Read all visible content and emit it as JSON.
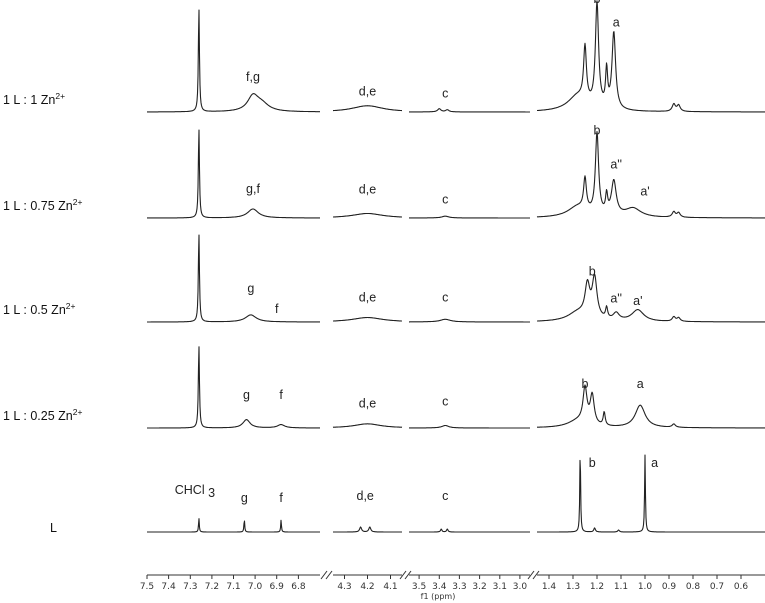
{
  "chart_data": {
    "type": "line",
    "title": "",
    "xlabel": "f1 (ppm)",
    "ylabel": "",
    "x_reversed": true,
    "axis_break_segments": [
      [
        7.5,
        6.7
      ],
      [
        4.35,
        4.05
      ],
      [
        3.55,
        2.95
      ],
      [
        1.45,
        0.5
      ]
    ],
    "x_ticks": [
      7.5,
      7.4,
      7.3,
      7.2,
      7.1,
      7.0,
      6.9,
      6.8,
      4.3,
      4.2,
      4.1,
      3.5,
      3.4,
      3.3,
      3.2,
      3.1,
      3.0,
      1.4,
      1.3,
      1.2,
      1.1,
      1.0,
      0.9,
      0.8,
      0.7,
      0.6
    ],
    "x_tick_labels": [
      "7.5",
      "7.4",
      "7.3",
      "7.2",
      "7.1",
      "7.0",
      "6.9",
      "6.8",
      "4.3",
      "4.2",
      "4.1",
      "3.5",
      "3.4",
      "3.3",
      "3.2",
      "3.1",
      "3.0",
      "1.4",
      "1.3",
      "1.2",
      "1.1",
      "1.0",
      "0.9",
      "0.8",
      "0.7",
      "0.6"
    ],
    "series": [
      {
        "name": "1 L : 1 Zn2+",
        "label_main": "1 L : 1 Zn",
        "label_sup": "2+",
        "peaks": [
          {
            "x": 7.26,
            "h": 1.0,
            "w": 0.003
          },
          {
            "x": 7.01,
            "h": 0.14,
            "w": 0.03
          },
          {
            "x": 6.97,
            "h": 0.07,
            "w": 0.04
          },
          {
            "x": 4.2,
            "h": 0.06,
            "w": 0.08
          },
          {
            "x": 3.4,
            "h": 0.03,
            "w": 0.01
          },
          {
            "x": 3.36,
            "h": 0.02,
            "w": 0.01
          },
          {
            "x": 1.25,
            "h": 0.52,
            "w": 0.007
          },
          {
            "x": 1.2,
            "h": 1.0,
            "w": 0.008
          },
          {
            "x": 1.16,
            "h": 0.35,
            "w": 0.005
          },
          {
            "x": 1.13,
            "h": 0.74,
            "w": 0.009
          },
          {
            "x": 1.28,
            "h": 0.15,
            "w": 0.05
          },
          {
            "x": 0.88,
            "h": 0.07,
            "w": 0.008
          },
          {
            "x": 0.86,
            "h": 0.06,
            "w": 0.008
          }
        ],
        "annotations": [
          {
            "text": "f,g",
            "x": 7.01,
            "h": 0.3
          },
          {
            "text": "d,e",
            "x": 4.2,
            "h": 0.16
          },
          {
            "text": "c",
            "x": 3.37,
            "h": 0.14
          },
          {
            "text": "b",
            "x": 1.2,
            "h": 1.05
          },
          {
            "text": "a",
            "x": 1.12,
            "h": 0.82
          }
        ]
      },
      {
        "name": "1 L : 0.75 Zn2+",
        "label_main": "1 L : 0.75 Zn",
        "label_sup": "2+",
        "peaks": [
          {
            "x": 7.26,
            "h": 1.0,
            "w": 0.003
          },
          {
            "x": 7.01,
            "h": 0.1,
            "w": 0.03
          },
          {
            "x": 4.2,
            "h": 0.05,
            "w": 0.08
          },
          {
            "x": 3.37,
            "h": 0.02,
            "w": 0.02
          },
          {
            "x": 1.25,
            "h": 0.35,
            "w": 0.007
          },
          {
            "x": 1.2,
            "h": 0.9,
            "w": 0.008
          },
          {
            "x": 1.16,
            "h": 0.2,
            "w": 0.005
          },
          {
            "x": 1.13,
            "h": 0.38,
            "w": 0.012
          },
          {
            "x": 1.05,
            "h": 0.1,
            "w": 0.04
          },
          {
            "x": 1.28,
            "h": 0.12,
            "w": 0.05
          },
          {
            "x": 0.88,
            "h": 0.06,
            "w": 0.008
          },
          {
            "x": 0.86,
            "h": 0.05,
            "w": 0.008
          }
        ],
        "annotations": [
          {
            "text": "g,f",
            "x": 7.01,
            "h": 0.28
          },
          {
            "text": "d,e",
            "x": 4.2,
            "h": 0.27
          },
          {
            "text": "c",
            "x": 3.37,
            "h": 0.16
          },
          {
            "text": "b",
            "x": 1.2,
            "h": 0.93
          },
          {
            "text": "a''",
            "x": 1.12,
            "h": 0.55
          },
          {
            "text": "a'",
            "x": 1.0,
            "h": 0.25
          }
        ]
      },
      {
        "name": "1 L : 0.5 Zn2+",
        "label_main": "1 L : 0.5 Zn",
        "label_sup": "2+",
        "peaks": [
          {
            "x": 7.26,
            "h": 1.0,
            "w": 0.003
          },
          {
            "x": 7.02,
            "h": 0.08,
            "w": 0.03
          },
          {
            "x": 4.2,
            "h": 0.05,
            "w": 0.08
          },
          {
            "x": 3.37,
            "h": 0.03,
            "w": 0.03
          },
          {
            "x": 1.24,
            "h": 0.35,
            "w": 0.012
          },
          {
            "x": 1.21,
            "h": 0.45,
            "w": 0.012
          },
          {
            "x": 1.16,
            "h": 0.12,
            "w": 0.005
          },
          {
            "x": 1.12,
            "h": 0.08,
            "w": 0.015
          },
          {
            "x": 1.03,
            "h": 0.13,
            "w": 0.03
          },
          {
            "x": 1.28,
            "h": 0.1,
            "w": 0.05
          },
          {
            "x": 0.88,
            "h": 0.05,
            "w": 0.008
          },
          {
            "x": 0.86,
            "h": 0.04,
            "w": 0.008
          }
        ],
        "annotations": [
          {
            "text": "g",
            "x": 7.02,
            "h": 0.33
          },
          {
            "text": "f",
            "x": 6.9,
            "h": 0.1
          },
          {
            "text": "d,e",
            "x": 4.2,
            "h": 0.23
          },
          {
            "text": "c",
            "x": 3.37,
            "h": 0.23
          },
          {
            "text": "b",
            "x": 1.22,
            "h": 0.52
          },
          {
            "text": "a''",
            "x": 1.12,
            "h": 0.22
          },
          {
            "text": "a'",
            "x": 1.03,
            "h": 0.19
          }
        ]
      },
      {
        "name": "1 L : 0.25 Zn2+",
        "label_main": "1 L : 0.25 Zn",
        "label_sup": "2+",
        "peaks": [
          {
            "x": 7.26,
            "h": 1.0,
            "w": 0.003
          },
          {
            "x": 7.04,
            "h": 0.1,
            "w": 0.02
          },
          {
            "x": 6.88,
            "h": 0.04,
            "w": 0.02
          },
          {
            "x": 4.2,
            "h": 0.05,
            "w": 0.07
          },
          {
            "x": 3.37,
            "h": 0.03,
            "w": 0.02
          },
          {
            "x": 1.25,
            "h": 0.42,
            "w": 0.01
          },
          {
            "x": 1.22,
            "h": 0.35,
            "w": 0.01
          },
          {
            "x": 1.17,
            "h": 0.16,
            "w": 0.005
          },
          {
            "x": 1.02,
            "h": 0.27,
            "w": 0.025
          },
          {
            "x": 1.28,
            "h": 0.08,
            "w": 0.05
          },
          {
            "x": 0.88,
            "h": 0.04,
            "w": 0.008
          }
        ],
        "annotations": [
          {
            "text": "g",
            "x": 7.04,
            "h": 0.35
          },
          {
            "text": "f",
            "x": 6.88,
            "h": 0.35
          },
          {
            "text": "d,e",
            "x": 4.2,
            "h": 0.25
          },
          {
            "text": "c",
            "x": 3.37,
            "h": 0.27
          },
          {
            "text": "b",
            "x": 1.25,
            "h": 0.48
          },
          {
            "text": "a",
            "x": 1.02,
            "h": 0.48
          }
        ]
      },
      {
        "name": "L",
        "label_main": "L",
        "label_sup": "",
        "peaks": [
          {
            "x": 7.26,
            "h": 0.14,
            "w": 0.002
          },
          {
            "x": 7.05,
            "h": 0.13,
            "w": 0.002
          },
          {
            "x": 6.88,
            "h": 0.12,
            "w": 0.002
          },
          {
            "x": 4.23,
            "h": 0.05,
            "w": 0.005
          },
          {
            "x": 4.19,
            "h": 0.05,
            "w": 0.005
          },
          {
            "x": 3.39,
            "h": 0.03,
            "w": 0.004
          },
          {
            "x": 3.36,
            "h": 0.03,
            "w": 0.004
          },
          {
            "x": 1.27,
            "h": 0.84,
            "w": 0.002
          },
          {
            "x": 1.0,
            "h": 0.77,
            "w": 0.002
          },
          {
            "x": 1.21,
            "h": 0.04,
            "w": 0.004
          },
          {
            "x": 1.11,
            "h": 0.02,
            "w": 0.004
          }
        ],
        "annotations": [
          {
            "text": "CHCl 3",
            "x": 7.26,
            "h": 0.38
          },
          {
            "text": "g",
            "x": 7.05,
            "h": 0.3
          },
          {
            "text": "f",
            "x": 6.88,
            "h": 0.3
          },
          {
            "text": "d,e",
            "x": 4.21,
            "h": 0.32
          },
          {
            "text": "c",
            "x": 3.37,
            "h": 0.32
          },
          {
            "text": "b",
            "x": 1.22,
            "h": 0.65
          },
          {
            "text": "a",
            "x": 0.96,
            "h": 0.65
          }
        ]
      }
    ]
  }
}
